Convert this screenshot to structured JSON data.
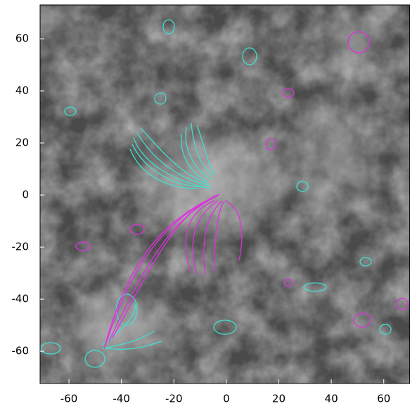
{
  "chart_data": {
    "type": "image",
    "xlim": [
      -71,
      70
    ],
    "ylim": [
      -72.4,
      73
    ],
    "xticks": [
      -60,
      -40,
      -20,
      0,
      20,
      40,
      60
    ],
    "yticks": [
      -60,
      -40,
      -20,
      0,
      20,
      40,
      60
    ],
    "colors": {
      "positive": "#40e0d0",
      "negative": "#e030e0"
    }
  }
}
